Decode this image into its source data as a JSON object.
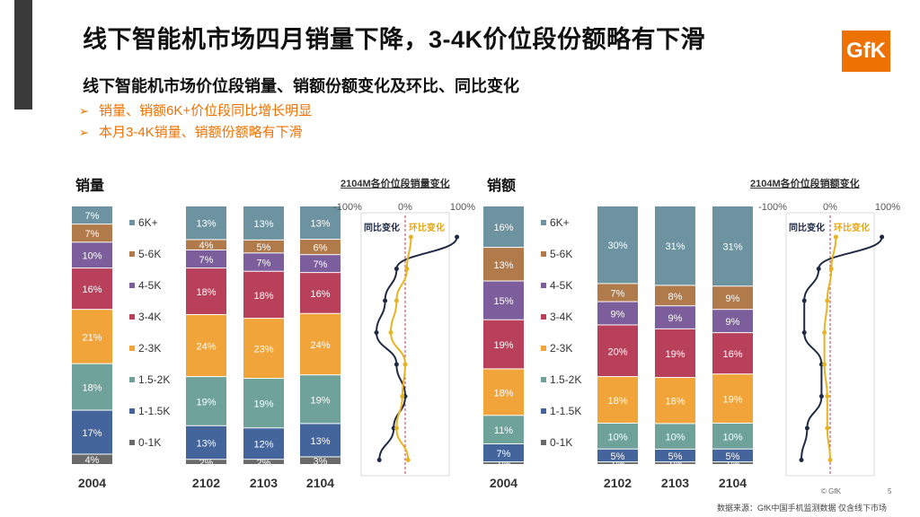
{
  "title": "线下智能机市场四月销量下降，3-4K价位段份额略有下滑",
  "subtitle": "线下智能机市场价位段销量、销额份额变化及环比、同比变化",
  "bullets": [
    "销量、销额6K+价位段同比增长明显",
    "本月3-4K销量、销额份额略有下滑"
  ],
  "logo": "GfK",
  "colors": {
    "6K+": "#6e93a0",
    "5-6K": "#b07a4a",
    "4-5K": "#7b5e9b",
    "3-4K": "#b8405a",
    "2-3K": "#f0a43a",
    "1.5-2K": "#6fa39a",
    "1-1.5K": "#44649c",
    "0-1K": "#6a6a6a",
    "yoy": "#1f2a44",
    "mom": "#e6b422"
  },
  "footer": {
    "source": "数据来源：GfK中国手机监测数据 仅含线下市场",
    "copyright": "© GfK",
    "page": "5"
  },
  "chart_data": [
    {
      "type": "stacked-bar",
      "panel_label": "销量",
      "change_title": "2104M各价位段销量变化",
      "categories": [
        "2004",
        "2102",
        "2103",
        "2104"
      ],
      "series": [
        {
          "name": "0-1K",
          "values": [
            4,
            2,
            2,
            3
          ],
          "labels": [
            "4%",
            "2%",
            "2%",
            "3%"
          ]
        },
        {
          "name": "1-1.5K",
          "values": [
            17,
            13,
            12,
            13
          ],
          "labels": [
            "17%",
            "13%",
            "12%",
            "13%"
          ]
        },
        {
          "name": "1.5-2K",
          "values": [
            18,
            19,
            19,
            19
          ],
          "labels": [
            "18%",
            "19%",
            "19%",
            "19%"
          ]
        },
        {
          "name": "2-3K",
          "values": [
            21,
            24,
            23,
            24
          ],
          "labels": [
            "21%",
            "24%",
            "23%",
            "24%"
          ]
        },
        {
          "name": "3-4K",
          "values": [
            16,
            18,
            18,
            16
          ],
          "labels": [
            "16%",
            "18%",
            "18%",
            "16%"
          ]
        },
        {
          "name": "4-5K",
          "values": [
            10,
            7,
            7,
            7
          ],
          "labels": [
            "10%",
            "7%",
            "7%",
            "7%"
          ]
        },
        {
          "name": "5-6K",
          "values": [
            7,
            4,
            5,
            6
          ],
          "labels": [
            "7%",
            "4%",
            "5%",
            "6%"
          ]
        },
        {
          "name": "6K+",
          "values": [
            7,
            13,
            13,
            13
          ],
          "labels": [
            "7%",
            "13%",
            "13%",
            "13%"
          ]
        }
      ],
      "change": {
        "axis_labels": [
          "-100%",
          "0%",
          "100%"
        ],
        "xlim": [
          -100,
          100
        ],
        "legend": [
          "同比变化",
          "环比变化"
        ],
        "yoy": [
          90,
          -15,
          -35,
          -50,
          -15,
          0,
          -20,
          -45
        ],
        "mom": [
          10,
          3,
          -15,
          -25,
          0,
          -5,
          -15,
          5
        ]
      }
    },
    {
      "type": "stacked-bar",
      "panel_label": "销额",
      "change_title": "2104M各价位段销额变化",
      "categories": [
        "2004",
        "2102",
        "2103",
        "2104"
      ],
      "series": [
        {
          "name": "0-1K",
          "values": [
            1,
            1,
            1,
            1
          ],
          "labels": [
            "1%",
            "1%",
            "1%",
            "1%"
          ]
        },
        {
          "name": "1-1.5K",
          "values": [
            7,
            5,
            5,
            5
          ],
          "labels": [
            "7%",
            "5%",
            "5%",
            "5%"
          ]
        },
        {
          "name": "1.5-2K",
          "values": [
            11,
            10,
            10,
            10
          ],
          "labels": [
            "11%",
            "10%",
            "10%",
            "10%"
          ]
        },
        {
          "name": "2-3K",
          "values": [
            18,
            18,
            18,
            19
          ],
          "labels": [
            "18%",
            "18%",
            "18%",
            "19%"
          ]
        },
        {
          "name": "3-4K",
          "values": [
            19,
            20,
            19,
            16
          ],
          "labels": [
            "19%",
            "20%",
            "19%",
            "16%"
          ]
        },
        {
          "name": "4-5K",
          "values": [
            15,
            9,
            9,
            9
          ],
          "labels": [
            "15%",
            "9%",
            "9%",
            "9%"
          ]
        },
        {
          "name": "5-6K",
          "values": [
            13,
            7,
            8,
            9
          ],
          "labels": [
            "13%",
            "7%",
            "8%",
            "9%"
          ]
        },
        {
          "name": "6K+",
          "values": [
            16,
            30,
            31,
            31
          ],
          "labels": [
            "16%",
            "30%",
            "31%",
            "31%"
          ]
        }
      ],
      "change": {
        "axis_labels": [
          "-100%",
          "0%",
          "100%"
        ],
        "xlim": [
          -100,
          100
        ],
        "legend": [
          "同比变化",
          "环比变化"
        ],
        "yoy": [
          90,
          -20,
          -45,
          -45,
          -15,
          -15,
          -40,
          -50
        ],
        "mom": [
          10,
          2,
          -5,
          -10,
          -10,
          -5,
          -5,
          0
        ]
      }
    }
  ]
}
